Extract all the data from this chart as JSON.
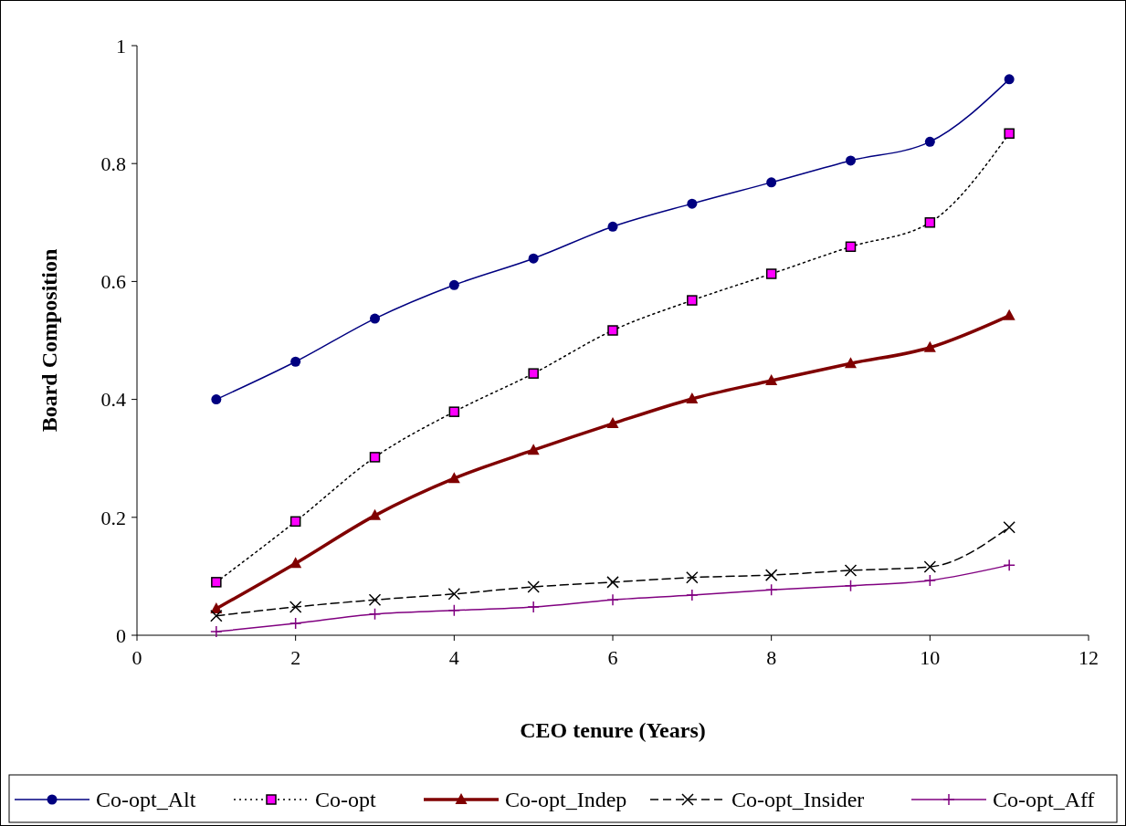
{
  "chart_data": {
    "type": "line",
    "xlabel": "CEO tenure (Years)",
    "ylabel": "Board Composition",
    "x": [
      1,
      2,
      3,
      4,
      5,
      6,
      7,
      8,
      9,
      10,
      11
    ],
    "xlim": [
      0,
      12
    ],
    "xticks": [
      0,
      2,
      4,
      6,
      8,
      10,
      12
    ],
    "ylim": [
      0,
      1
    ],
    "yticks": [
      0,
      0.2,
      0.4,
      0.6,
      0.8,
      1
    ],
    "grid": false,
    "legend": "bottom",
    "series": [
      {
        "name": "Co-opt_Alt",
        "color": "#000080",
        "marker": "circle",
        "line_style": "solid",
        "values": [
          0.4,
          0.464,
          0.537,
          0.594,
          0.639,
          0.693,
          0.732,
          0.768,
          0.805,
          0.837,
          0.943
        ]
      },
      {
        "name": "Co-opt",
        "color": "#ff00ff",
        "marker": "square",
        "line_style": "dotted",
        "values": [
          0.09,
          0.193,
          0.302,
          0.379,
          0.444,
          0.517,
          0.568,
          0.613,
          0.659,
          0.7,
          0.851
        ]
      },
      {
        "name": "Co-opt_Indep",
        "color": "#800000",
        "marker": "triangle",
        "line_style": "solid",
        "values": [
          0.045,
          0.122,
          0.203,
          0.266,
          0.314,
          0.359,
          0.401,
          0.432,
          0.461,
          0.488,
          0.542
        ]
      },
      {
        "name": "Co-opt_Insider",
        "color": "#000000",
        "marker": "cross",
        "line_style": "dashed",
        "values": [
          0.033,
          0.048,
          0.06,
          0.07,
          0.082,
          0.09,
          0.098,
          0.102,
          0.11,
          0.116,
          0.183
        ]
      },
      {
        "name": "Co-opt_Aff",
        "color": "#800080",
        "marker": "plus",
        "line_style": "solid",
        "values": [
          0.006,
          0.02,
          0.036,
          0.042,
          0.048,
          0.06,
          0.068,
          0.077,
          0.084,
          0.093,
          0.119
        ]
      }
    ]
  }
}
